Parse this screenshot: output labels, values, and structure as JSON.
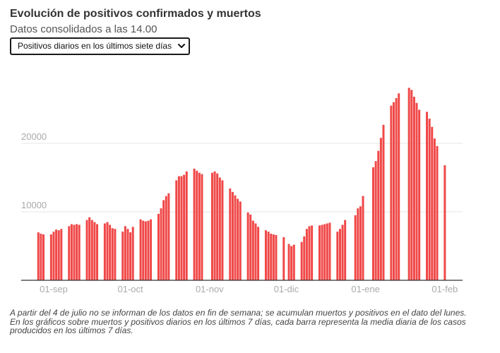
{
  "header": {
    "title": "Evolución de positivos confirmados y muertos",
    "subtitle": "Datos consolidados a las 14.00"
  },
  "selector": {
    "selected": "Positivos diarios en los últimos siete días",
    "icon": "chevron-down-icon"
  },
  "footnote": "A partir del 4 de julio no se informan de los datos en fin de semana; se acumulan muertos y positivos en el dato del lunes. En los gráficos sobre muertos y positivos diarios en los últimos 7 días, cada barra representa la media diaria de los casos producidos en los últimos 7 días.",
  "colors": {
    "bar": "#f04848",
    "grid": "#e6e6e6",
    "axis": "#333333",
    "tick_label": "#aaaaaa"
  },
  "chart_data": {
    "type": "bar",
    "title": "",
    "xlabel": "",
    "ylabel": "",
    "ylim": [
      0,
      30000
    ],
    "grid": true,
    "yticks": [
      10000,
      20000
    ],
    "ytick_labels": [
      "10000",
      "20000"
    ],
    "x_ticks": [
      {
        "label": "01-sep",
        "date": "2020-09-01"
      },
      {
        "label": "01-oct",
        "date": "2020-10-01"
      },
      {
        "label": "01-nov",
        "date": "2020-11-01"
      },
      {
        "label": "01-dic",
        "date": "2020-12-01"
      },
      {
        "label": "01-ene",
        "date": "2021-01-01"
      },
      {
        "label": "01-feb",
        "date": "2021-02-01"
      }
    ],
    "series": [
      {
        "points": [
          [
            "2020-08-26",
            7000
          ],
          [
            "2020-08-27",
            6800
          ],
          [
            "2020-08-28",
            6700
          ],
          [
            "2020-08-31",
            6700
          ],
          [
            "2020-09-01",
            7100
          ],
          [
            "2020-09-02",
            7400
          ],
          [
            "2020-09-03",
            7300
          ],
          [
            "2020-09-04",
            7500
          ],
          [
            "2020-09-07",
            7900
          ],
          [
            "2020-09-08",
            8200
          ],
          [
            "2020-09-09",
            8100
          ],
          [
            "2020-09-10",
            8200
          ],
          [
            "2020-09-11",
            8100
          ],
          [
            "2020-09-14",
            8800
          ],
          [
            "2020-09-15",
            9200
          ],
          [
            "2020-09-16",
            8800
          ],
          [
            "2020-09-17",
            8500
          ],
          [
            "2020-09-18",
            8200
          ],
          [
            "2020-09-21",
            8300
          ],
          [
            "2020-09-22",
            8500
          ],
          [
            "2020-09-23",
            8100
          ],
          [
            "2020-09-24",
            7600
          ],
          [
            "2020-09-25",
            7500
          ],
          [
            "2020-09-28",
            7100
          ],
          [
            "2020-09-29",
            7900
          ],
          [
            "2020-09-30",
            7500
          ],
          [
            "2020-10-01",
            7000
          ],
          [
            "2020-10-02",
            7800
          ],
          [
            "2020-10-05",
            8900
          ],
          [
            "2020-10-06",
            8700
          ],
          [
            "2020-10-07",
            8600
          ],
          [
            "2020-10-08",
            8700
          ],
          [
            "2020-10-09",
            8900
          ],
          [
            "2020-10-12",
            9700
          ],
          [
            "2020-10-13",
            10500
          ],
          [
            "2020-10-14",
            11700
          ],
          [
            "2020-10-15",
            12300
          ],
          [
            "2020-10-16",
            12700
          ],
          [
            "2020-10-19",
            14600
          ],
          [
            "2020-10-20",
            15200
          ],
          [
            "2020-10-21",
            15200
          ],
          [
            "2020-10-22",
            15400
          ],
          [
            "2020-10-23",
            15900
          ],
          [
            "2020-10-26",
            16300
          ],
          [
            "2020-10-27",
            16000
          ],
          [
            "2020-10-28",
            15700
          ],
          [
            "2020-10-29",
            15500
          ],
          [
            "2020-11-02",
            15700
          ],
          [
            "2020-11-03",
            15900
          ],
          [
            "2020-11-04",
            15600
          ],
          [
            "2020-11-05",
            15000
          ],
          [
            "2020-11-06",
            14600
          ],
          [
            "2020-11-09",
            13400
          ],
          [
            "2020-11-10",
            12900
          ],
          [
            "2020-11-11",
            12400
          ],
          [
            "2020-11-12",
            11900
          ],
          [
            "2020-11-13",
            11500
          ],
          [
            "2020-11-16",
            9900
          ],
          [
            "2020-11-17",
            9600
          ],
          [
            "2020-11-18",
            8700
          ],
          [
            "2020-11-19",
            8300
          ],
          [
            "2020-11-20",
            7800
          ],
          [
            "2020-11-23",
            7300
          ],
          [
            "2020-11-24",
            7100
          ],
          [
            "2020-11-25",
            6800
          ],
          [
            "2020-11-26",
            6700
          ],
          [
            "2020-11-27",
            6600
          ],
          [
            "2020-11-30",
            6300
          ],
          [
            "2020-12-02",
            5300
          ],
          [
            "2020-12-03",
            5000
          ],
          [
            "2020-12-04",
            5200
          ],
          [
            "2020-12-07",
            5600
          ],
          [
            "2020-12-08",
            6400
          ],
          [
            "2020-12-09",
            7500
          ],
          [
            "2020-12-10",
            7900
          ],
          [
            "2020-12-11",
            8000
          ],
          [
            "2020-12-14",
            8000
          ],
          [
            "2020-12-15",
            8100
          ],
          [
            "2020-12-16",
            8200
          ],
          [
            "2020-12-17",
            8300
          ],
          [
            "2020-12-18",
            8400
          ],
          [
            "2020-12-21",
            7100
          ],
          [
            "2020-12-22",
            7500
          ],
          [
            "2020-12-23",
            8100
          ],
          [
            "2020-12-24",
            8800
          ],
          [
            "2020-12-28",
            9500
          ],
          [
            "2020-12-29",
            10500
          ],
          [
            "2020-12-30",
            10800
          ],
          [
            "2020-12-31",
            12300
          ],
          [
            "2021-01-04",
            16500
          ],
          [
            "2021-01-05",
            17400
          ],
          [
            "2021-01-06",
            18900
          ],
          [
            "2021-01-07",
            20800
          ],
          [
            "2021-01-08",
            22700
          ],
          [
            "2021-01-11",
            25500
          ],
          [
            "2021-01-12",
            26000
          ],
          [
            "2021-01-13",
            26600
          ],
          [
            "2021-01-14",
            27300
          ],
          [
            "2021-01-18",
            28100
          ],
          [
            "2021-01-19",
            27800
          ],
          [
            "2021-01-20",
            26800
          ],
          [
            "2021-01-21",
            25900
          ],
          [
            "2021-01-22",
            24900
          ],
          [
            "2021-01-25",
            24600
          ],
          [
            "2021-01-26",
            23600
          ],
          [
            "2021-01-27",
            22400
          ],
          [
            "2021-01-28",
            20700
          ],
          [
            "2021-01-29",
            19600
          ],
          [
            "2021-02-01",
            16800
          ]
        ]
      }
    ]
  }
}
